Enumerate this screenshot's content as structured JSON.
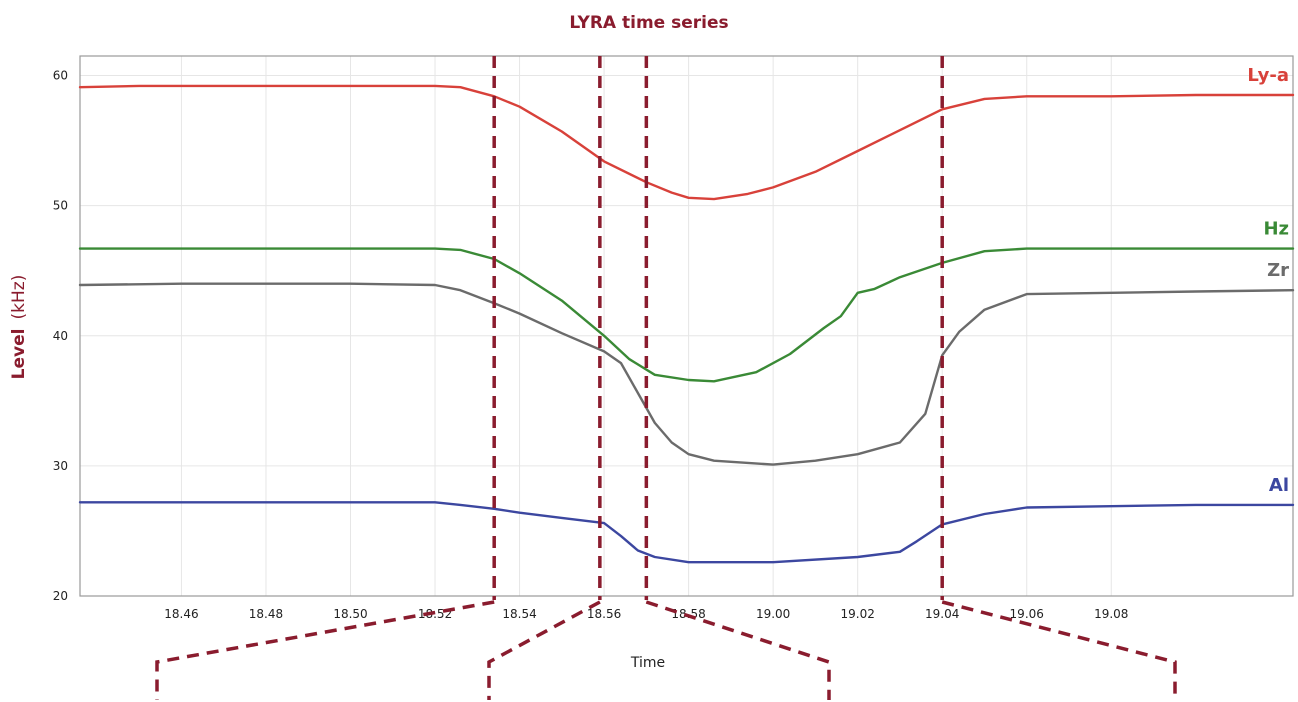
{
  "chart_data": {
    "type": "line",
    "title": "LYRA time series",
    "xlabel": "Time",
    "ylabel": "Level",
    "ylabel_unit": "(kHz)",
    "xticks": [
      "18.46",
      "18.48",
      "18.50",
      "18.52",
      "18.54",
      "18.56",
      "18.58",
      "19.00",
      "19.02",
      "19.04",
      "19.06",
      "19.08"
    ],
    "xlim": [
      -1.2,
      13.15
    ],
    "yticks": [
      "20",
      "30",
      "40",
      "50",
      "60"
    ],
    "ylim": [
      20,
      61.5
    ],
    "grid": true,
    "markers_at": [
      3.7,
      4.95,
      5.5,
      9.0
    ],
    "series": [
      {
        "name": "Ly-a",
        "color": "#d8413a",
        "x": [
          -1.2,
          -0.5,
          0,
          1,
          2,
          3,
          3.3,
          3.7,
          4.0,
          4.5,
          5.0,
          5.5,
          5.8,
          6.0,
          6.3,
          6.7,
          7.0,
          7.5,
          8.0,
          8.5,
          9.0,
          9.5,
          10.0,
          11.0,
          12.0,
          13.15
        ],
        "values": [
          59.1,
          59.2,
          59.2,
          59.2,
          59.2,
          59.2,
          59.1,
          58.4,
          57.6,
          55.7,
          53.4,
          51.8,
          51.0,
          50.6,
          50.5,
          50.9,
          51.4,
          52.6,
          54.2,
          55.8,
          57.4,
          58.2,
          58.4,
          58.4,
          58.5,
          58.5
        ]
      },
      {
        "name": "Hz",
        "color": "#3a8a36",
        "x": [
          -1.2,
          0,
          1,
          2,
          3,
          3.3,
          3.7,
          4.0,
          4.5,
          5.0,
          5.3,
          5.6,
          6.0,
          6.3,
          6.8,
          7.2,
          7.6,
          7.8,
          8.0,
          8.2,
          8.5,
          9.0,
          9.5,
          10.0,
          11.0,
          12.0,
          13.15
        ],
        "values": [
          46.7,
          46.7,
          46.7,
          46.7,
          46.7,
          46.6,
          45.9,
          44.8,
          42.7,
          40.0,
          38.2,
          37.0,
          36.6,
          36.5,
          37.2,
          38.6,
          40.6,
          41.5,
          43.3,
          43.6,
          44.5,
          45.6,
          46.5,
          46.7,
          46.7,
          46.7,
          46.7
        ]
      },
      {
        "name": "Zr",
        "color": "#6b6b6b",
        "x": [
          -1.2,
          0,
          1,
          2,
          3,
          3.3,
          3.7,
          4.0,
          4.5,
          5.0,
          5.2,
          5.4,
          5.6,
          5.8,
          6.0,
          6.3,
          7.0,
          7.5,
          8.0,
          8.5,
          8.8,
          9.0,
          9.2,
          9.5,
          10.0,
          11.0,
          12.0,
          13.15
        ],
        "values": [
          43.9,
          44.0,
          44.0,
          44.0,
          43.9,
          43.5,
          42.5,
          41.7,
          40.2,
          38.8,
          37.9,
          35.6,
          33.3,
          31.8,
          30.9,
          30.4,
          30.1,
          30.4,
          30.9,
          31.8,
          34.0,
          38.5,
          40.3,
          42.0,
          43.2,
          43.3,
          43.4,
          43.5
        ]
      },
      {
        "name": "Al",
        "color": "#3c47a0",
        "x": [
          -1.2,
          0,
          1,
          2,
          3,
          3.3,
          3.7,
          4.0,
          4.5,
          5.0,
          5.2,
          5.4,
          5.6,
          6.0,
          7.0,
          8.0,
          8.5,
          8.7,
          9.0,
          9.5,
          10.0,
          11.0,
          12.0,
          13.15
        ],
        "values": [
          27.2,
          27.2,
          27.2,
          27.2,
          27.2,
          27.0,
          26.7,
          26.4,
          26.0,
          25.6,
          24.6,
          23.5,
          23.0,
          22.6,
          22.6,
          23.0,
          23.4,
          24.2,
          25.5,
          26.3,
          26.8,
          26.9,
          27.0,
          27.0
        ]
      }
    ]
  }
}
